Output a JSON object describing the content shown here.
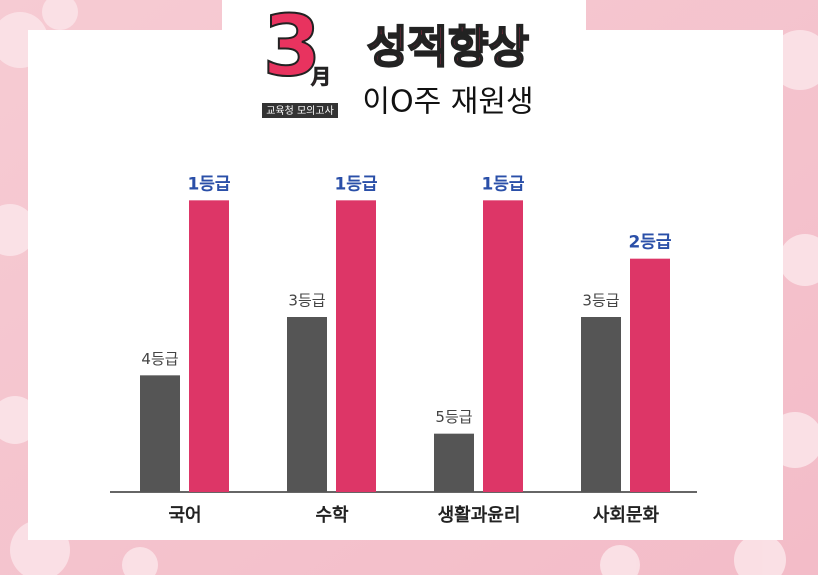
{
  "chart_data": {
    "type": "bar",
    "annotations": [
      "3",
      "月",
      "교육청 모의고사"
    ],
    "title": "성적향상",
    "subtitle": "이O주 재원생",
    "categories": [
      "국어",
      "수학",
      "생활과윤리",
      "사회문화"
    ],
    "series": [
      {
        "color": "#555555",
        "values": [
          4,
          3,
          5,
          3
        ],
        "value_labels": [
          "4등급",
          "3등급",
          "5등급",
          "3등급"
        ]
      },
      {
        "color": "#dd3667",
        "values": [
          1,
          1,
          1,
          2
        ],
        "value_labels": [
          "1등급",
          "1등급",
          "1등급",
          "2등급"
        ]
      }
    ],
    "ylim": [
      6,
      0
    ]
  }
}
